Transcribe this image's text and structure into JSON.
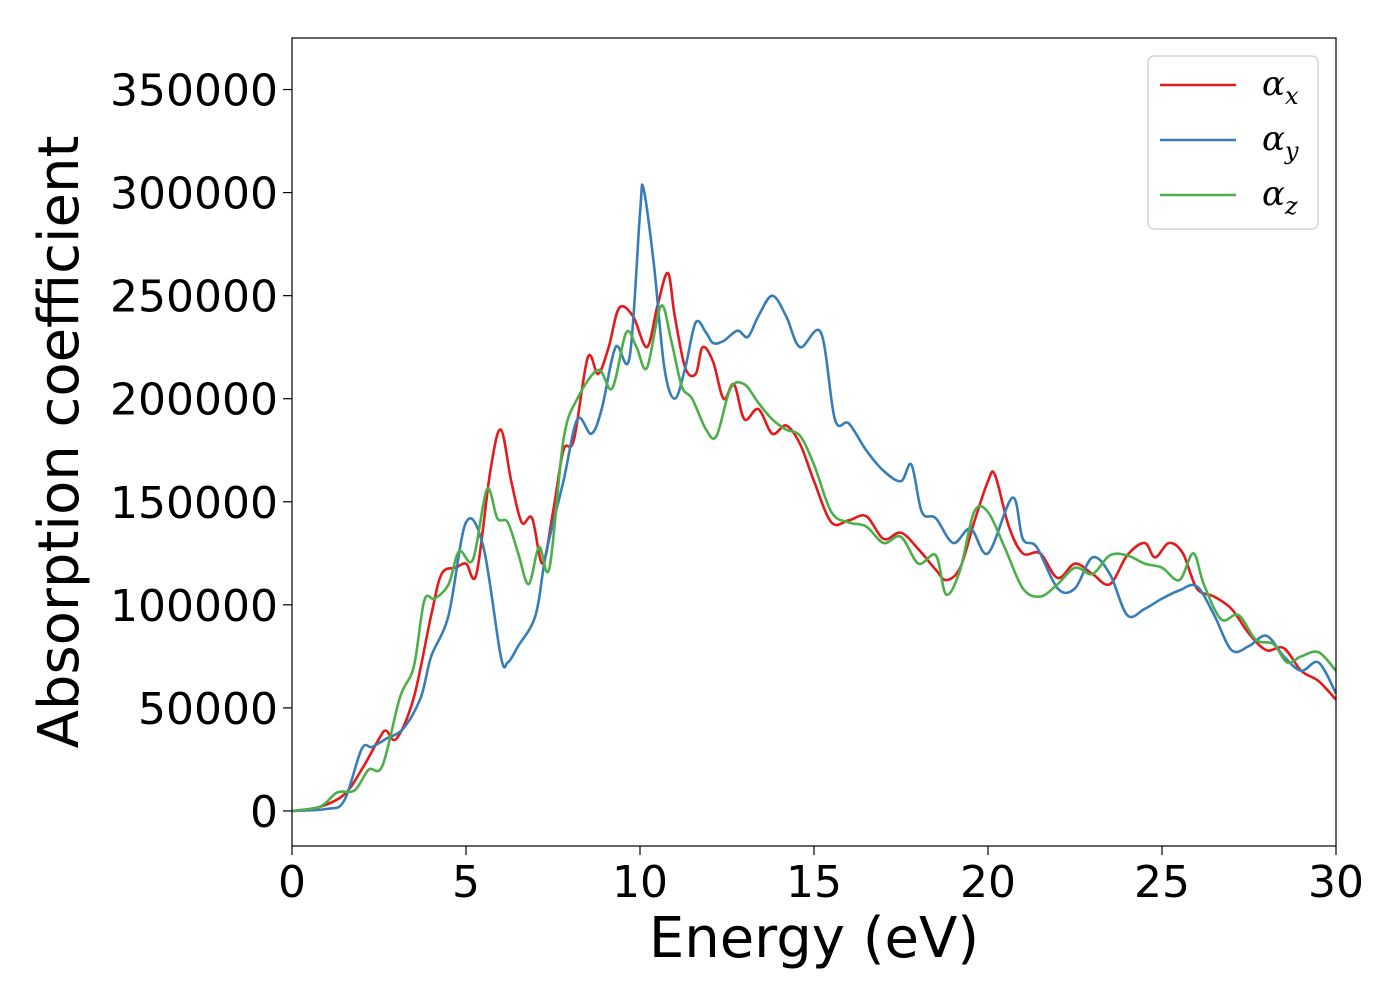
{
  "chart_data": {
    "type": "line",
    "xlabel": "Energy (eV)",
    "ylabel": "Absorption coefficient",
    "xlim": [
      0,
      30
    ],
    "ylim": [
      -17000,
      375000
    ],
    "xticks": [
      "0",
      "5",
      "10",
      "15",
      "20",
      "25",
      "30"
    ],
    "yticks": [
      "0",
      "50000",
      "100000",
      "150000",
      "200000",
      "250000",
      "300000",
      "350000"
    ],
    "grid": false,
    "legend_position": "top-right",
    "series": [
      {
        "name": "α",
        "subscript": "x",
        "color": "#e41a1c",
        "x": [
          0,
          0.8,
          1.5,
          2.0,
          2.5,
          2.7,
          3.0,
          3.5,
          4.0,
          4.3,
          4.7,
          5.0,
          5.3,
          5.7,
          6.0,
          6.3,
          6.6,
          6.9,
          7.2,
          7.5,
          7.8,
          8.1,
          8.5,
          8.8,
          9.1,
          9.4,
          9.8,
          10.2,
          10.5,
          10.8,
          11.0,
          11.3,
          11.6,
          11.8,
          12.1,
          12.4,
          12.7,
          13.0,
          13.4,
          13.8,
          14.2,
          14.6,
          15.0,
          15.5,
          16.0,
          16.5,
          17.0,
          17.5,
          18.0,
          18.5,
          18.8,
          19.2,
          19.6,
          20.0,
          20.2,
          20.6,
          21.0,
          21.5,
          22.0,
          22.5,
          23.0,
          23.5,
          24.0,
          24.5,
          24.8,
          25.2,
          25.6,
          26.0,
          26.5,
          27.0,
          27.5,
          28.0,
          28.5,
          29.0,
          29.5,
          30.0
        ],
        "values": [
          0,
          2000,
          8000,
          20000,
          35000,
          39000,
          35000,
          55000,
          95000,
          115000,
          118000,
          120000,
          115000,
          165000,
          185000,
          160000,
          140000,
          142000,
          120000,
          145000,
          175000,
          180000,
          220000,
          212000,
          225000,
          244000,
          240000,
          225000,
          245000,
          261000,
          240000,
          215000,
          212000,
          225000,
          218000,
          200000,
          207000,
          190000,
          195000,
          183000,
          187000,
          178000,
          160000,
          140000,
          141000,
          143000,
          132000,
          135000,
          127000,
          117000,
          112000,
          118000,
          140000,
          160000,
          163000,
          138000,
          125000,
          125000,
          113000,
          120000,
          115000,
          110000,
          124000,
          130000,
          123000,
          130000,
          125000,
          108000,
          104000,
          98000,
          86000,
          78000,
          79000,
          68000,
          63000,
          54000
        ]
      },
      {
        "name": "α",
        "subscript": "y",
        "color": "#377eb8",
        "x": [
          0,
          1.0,
          1.5,
          2.0,
          2.3,
          2.7,
          3.2,
          3.7,
          4.0,
          4.5,
          5.0,
          5.5,
          6.0,
          6.2,
          6.5,
          7.0,
          7.3,
          7.8,
          8.2,
          8.6,
          8.9,
          9.3,
          9.7,
          10.0,
          10.1,
          10.4,
          10.7,
          11.0,
          11.3,
          11.6,
          11.9,
          12.1,
          12.4,
          12.8,
          13.1,
          13.4,
          13.8,
          14.2,
          14.6,
          15.2,
          15.6,
          16.0,
          16.5,
          17.0,
          17.5,
          17.8,
          18.1,
          18.5,
          19.0,
          19.5,
          20.0,
          20.7,
          21.0,
          21.4,
          22.0,
          22.5,
          23.0,
          23.5,
          24.0,
          24.5,
          25.0,
          25.5,
          26.0,
          26.5,
          27.0,
          27.5,
          28.0,
          28.5,
          29.0,
          29.5,
          30.0
        ],
        "values": [
          0,
          1000,
          5000,
          30000,
          31000,
          35000,
          40000,
          55000,
          75000,
          95000,
          140000,
          128000,
          75000,
          72000,
          80000,
          95000,
          125000,
          160000,
          190000,
          183000,
          195000,
          225000,
          220000,
          290000,
          302000,
          265000,
          215000,
          200000,
          215000,
          237000,
          232000,
          227000,
          228000,
          233000,
          230000,
          240000,
          250000,
          240000,
          225000,
          232000,
          190000,
          188000,
          175000,
          165000,
          160000,
          168000,
          145000,
          142000,
          130000,
          137000,
          125000,
          152000,
          132000,
          128000,
          108000,
          108000,
          123000,
          115000,
          95000,
          98000,
          103000,
          107000,
          109000,
          95000,
          78000,
          80000,
          85000,
          75000,
          68000,
          72000,
          57000
        ]
      },
      {
        "name": "α",
        "subscript": "z",
        "color": "#4daf4a",
        "x": [
          0,
          0.8,
          1.3,
          1.8,
          2.2,
          2.6,
          3.1,
          3.5,
          3.8,
          4.1,
          4.5,
          4.8,
          5.2,
          5.6,
          5.9,
          6.2,
          6.5,
          6.8,
          7.1,
          7.4,
          7.8,
          8.2,
          8.8,
          9.2,
          9.6,
          9.9,
          10.2,
          10.6,
          10.9,
          11.2,
          11.5,
          11.9,
          12.2,
          12.6,
          13.0,
          13.4,
          13.8,
          14.2,
          14.6,
          15.0,
          15.5,
          16.0,
          16.5,
          17.0,
          17.5,
          18.0,
          18.5,
          18.8,
          19.2,
          19.6,
          20.0,
          20.5,
          21.0,
          21.5,
          22.0,
          22.5,
          23.0,
          23.5,
          24.0,
          24.5,
          25.0,
          25.5,
          25.9,
          26.2,
          26.7,
          27.2,
          27.7,
          28.2,
          28.6,
          29.0,
          29.5,
          30.0
        ],
        "values": [
          0,
          2000,
          9000,
          10000,
          20000,
          22000,
          55000,
          70000,
          102000,
          103000,
          110000,
          126000,
          122000,
          156000,
          142000,
          140000,
          125000,
          110000,
          128000,
          118000,
          180000,
          200000,
          214000,
          205000,
          232000,
          225000,
          215000,
          245000,
          228000,
          206000,
          200000,
          185000,
          182000,
          205000,
          207000,
          198000,
          190000,
          185000,
          182000,
          168000,
          145000,
          140000,
          138000,
          130000,
          133000,
          120000,
          124000,
          105000,
          117000,
          145000,
          145000,
          127000,
          108000,
          104000,
          110000,
          118000,
          115000,
          124000,
          124000,
          120000,
          118000,
          112000,
          125000,
          110000,
          93000,
          95000,
          83000,
          81000,
          72000,
          75000,
          77000,
          68000
        ]
      }
    ]
  }
}
